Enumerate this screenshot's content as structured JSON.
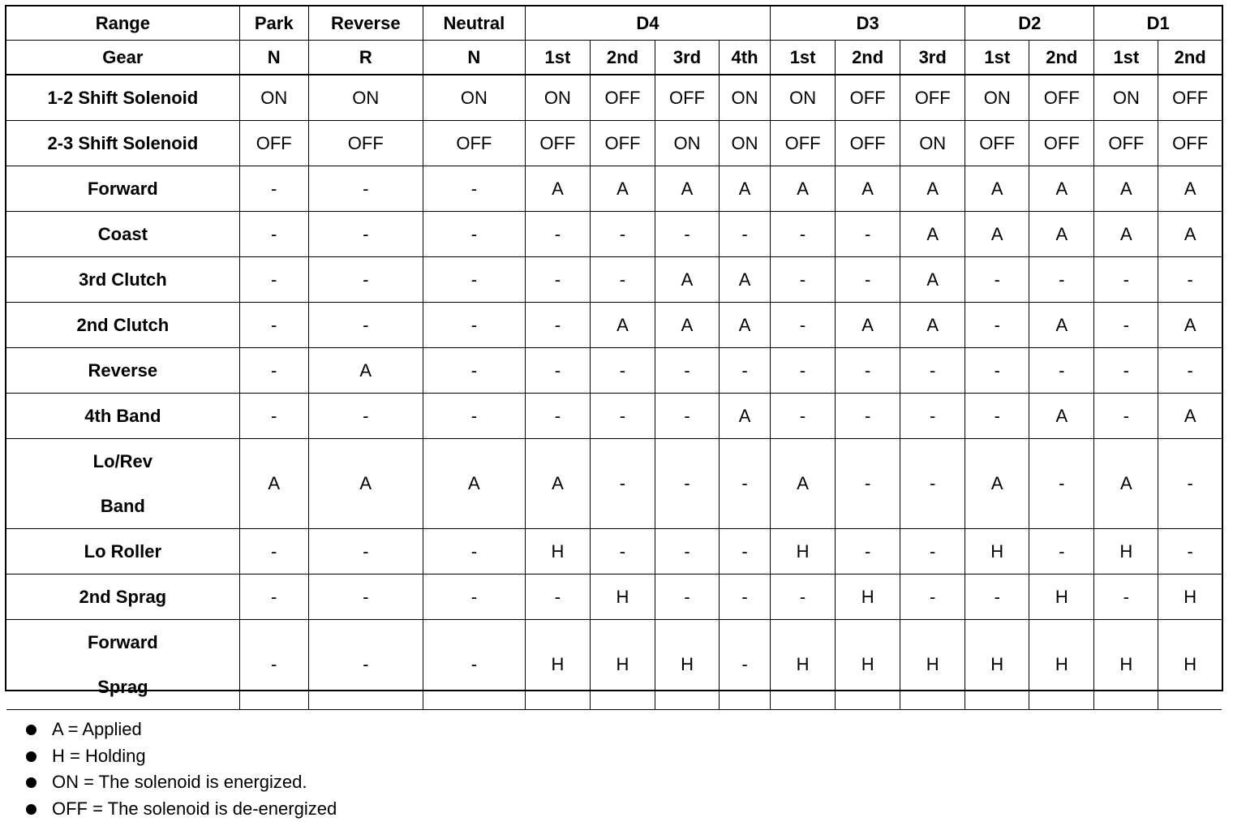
{
  "table": {
    "header": {
      "range_label": "Range",
      "gear_label": "Gear",
      "groups": [
        {
          "range": "Park",
          "gears": [
            "N"
          ]
        },
        {
          "range": "Reverse",
          "gears": [
            "R"
          ]
        },
        {
          "range": "Neutral",
          "gears": [
            "N"
          ]
        },
        {
          "range": "D4",
          "gears": [
            "1st",
            "2nd",
            "3rd",
            "4th"
          ]
        },
        {
          "range": "D3",
          "gears": [
            "1st",
            "2nd",
            "3rd"
          ]
        },
        {
          "range": "D2",
          "gears": [
            "1st",
            "2nd"
          ]
        },
        {
          "range": "D1",
          "gears": [
            "1st",
            "2nd"
          ]
        }
      ]
    },
    "rows": [
      {
        "label": [
          "1-2 Shift Solenoid"
        ],
        "values": [
          "ON",
          "ON",
          "ON",
          "ON",
          "OFF",
          "OFF",
          "ON",
          "ON",
          "OFF",
          "OFF",
          "ON",
          "OFF",
          "ON",
          "OFF"
        ]
      },
      {
        "label": [
          "2-3 Shift Solenoid"
        ],
        "values": [
          "OFF",
          "OFF",
          "OFF",
          "OFF",
          "OFF",
          "ON",
          "ON",
          "OFF",
          "OFF",
          "ON",
          "OFF",
          "OFF",
          "OFF",
          "OFF"
        ]
      },
      {
        "label": [
          "Forward"
        ],
        "values": [
          "-",
          "-",
          "-",
          "A",
          "A",
          "A",
          "A",
          "A",
          "A",
          "A",
          "A",
          "A",
          "A",
          "A"
        ]
      },
      {
        "label": [
          "Coast"
        ],
        "values": [
          "-",
          "-",
          "-",
          "-",
          "-",
          "-",
          "-",
          "-",
          "-",
          "A",
          "A",
          "A",
          "A",
          "A"
        ]
      },
      {
        "label": [
          "3rd Clutch"
        ],
        "values": [
          "-",
          "-",
          "-",
          "-",
          "-",
          "A",
          "A",
          "-",
          "-",
          "A",
          "-",
          "-",
          "-",
          "-"
        ]
      },
      {
        "label": [
          "2nd Clutch"
        ],
        "values": [
          "-",
          "-",
          "-",
          "-",
          "A",
          "A",
          "A",
          "-",
          "A",
          "A",
          "-",
          "A",
          "-",
          "A"
        ]
      },
      {
        "label": [
          "Reverse"
        ],
        "values": [
          "-",
          "A",
          "-",
          "-",
          "-",
          "-",
          "-",
          "-",
          "-",
          "-",
          "-",
          "-",
          "-",
          "-"
        ]
      },
      {
        "label": [
          "4th Band"
        ],
        "values": [
          "-",
          "-",
          "-",
          "-",
          "-",
          "-",
          "A",
          "-",
          "-",
          "-",
          "-",
          "A",
          "-",
          "A"
        ]
      },
      {
        "label": [
          "Lo/Rev",
          "Band"
        ],
        "values": [
          "A",
          "A",
          "A",
          "A",
          "-",
          "-",
          "-",
          "A",
          "-",
          "-",
          "A",
          "-",
          "A",
          "-"
        ]
      },
      {
        "label": [
          "Lo Roller"
        ],
        "values": [
          "-",
          "-",
          "-",
          "H",
          "-",
          "-",
          "-",
          "H",
          "-",
          "-",
          "H",
          "-",
          "H",
          "-"
        ]
      },
      {
        "label": [
          "2nd Sprag"
        ],
        "values": [
          "-",
          "-",
          "-",
          "-",
          "H",
          "-",
          "-",
          "-",
          "H",
          "-",
          "-",
          "H",
          "-",
          "H"
        ]
      },
      {
        "label": [
          "Forward",
          "Sprag"
        ],
        "values": [
          "-",
          "-",
          "-",
          "H",
          "H",
          "H",
          "-",
          "H",
          "H",
          "H",
          "H",
          "H",
          "H",
          "H"
        ]
      }
    ]
  },
  "notes": [
    "A = Applied",
    "H = Holding",
    "ON = The solenoid is energized.",
    "OFF = The solenoid is de-energized"
  ]
}
